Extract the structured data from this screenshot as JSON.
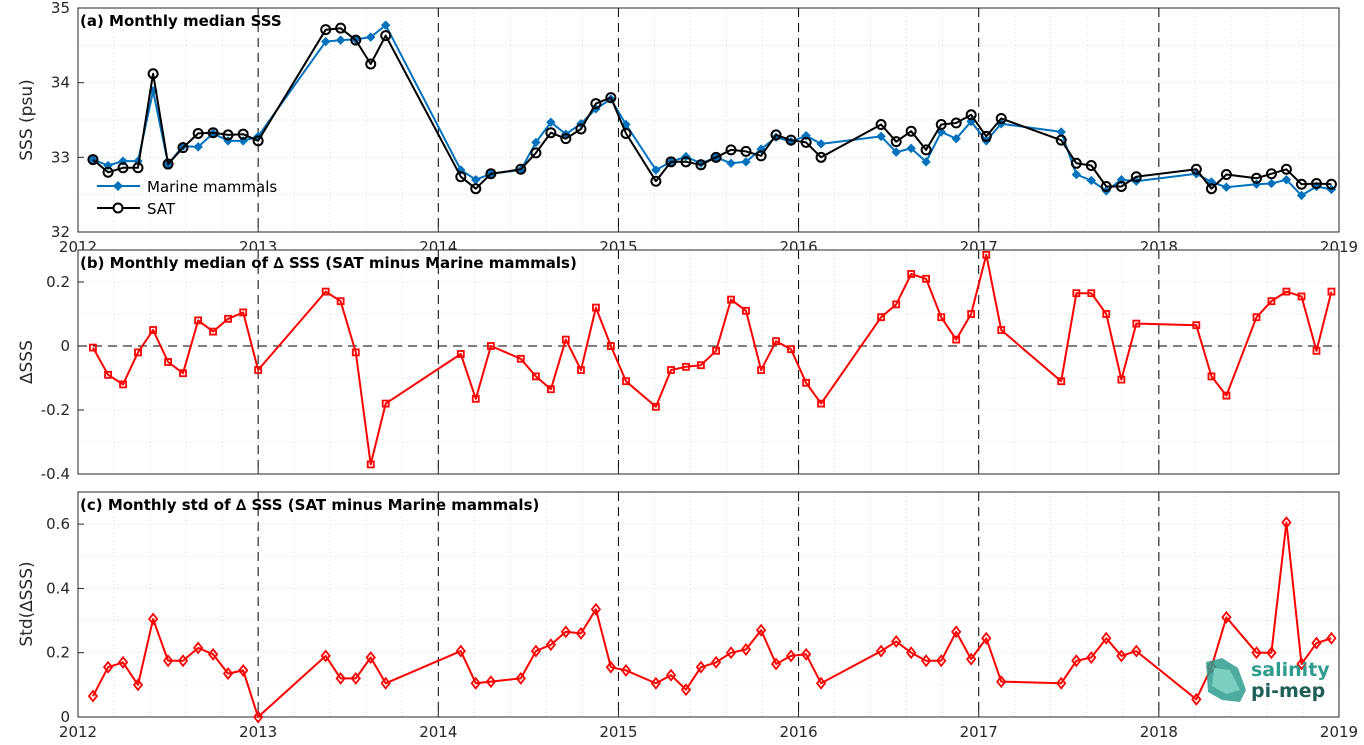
{
  "colors": {
    "mammals": "#0072BD",
    "sat": "#000000",
    "delta": "#FF0000",
    "grid": "#cfcfcf",
    "logo": "#2e9c8e"
  },
  "logo": {
    "line1": "salinity",
    "line2": "pi-mep"
  },
  "chart_data": [
    {
      "type": "line",
      "title": "(a) Monthly median SSS",
      "ylabel": "SSS (psu)",
      "xlim": [
        2012,
        2019
      ],
      "ylim": [
        32,
        35
      ],
      "yticks": [
        32,
        33,
        34,
        35
      ],
      "ytick_labels": [
        "32",
        "33",
        "34",
        "35"
      ],
      "xticks": [
        2012,
        2013,
        2014,
        2015,
        2016,
        2017,
        2018,
        2019
      ],
      "xtick_labels": [
        "2012",
        "2013",
        "2014",
        "2015",
        "2016",
        "2017",
        "2018",
        "2019"
      ],
      "grid": true,
      "legend": "left",
      "series": [
        {
          "name": "Marine mammals",
          "marker": "diamond",
          "x": [
            2012.083,
            2012.167,
            2012.25,
            2012.333,
            2012.417,
            2012.5,
            2012.583,
            2012.667,
            2012.75,
            2012.833,
            2012.917,
            2013.0,
            2013.375,
            2013.458,
            2013.542,
            2013.625,
            2013.708,
            2014.125,
            2014.208,
            2014.292,
            2014.458,
            2014.542,
            2014.625,
            2014.708,
            2014.792,
            2014.875,
            2014.958,
            2015.042,
            2015.208,
            2015.292,
            2015.375,
            2015.458,
            2015.542,
            2015.625,
            2015.708,
            2015.792,
            2015.875,
            2015.958,
            2016.042,
            2016.125,
            2016.458,
            2016.542,
            2016.625,
            2016.708,
            2016.792,
            2016.875,
            2016.958,
            2017.042,
            2017.125,
            2017.458,
            2017.542,
            2017.625,
            2017.708,
            2017.792,
            2017.875,
            2018.208,
            2018.292,
            2018.375,
            2018.542,
            2018.625,
            2018.708,
            2018.792,
            2018.875,
            2018.958
          ],
          "y": [
            32.97,
            32.89,
            32.95,
            32.95,
            33.89,
            32.91,
            33.15,
            33.14,
            33.32,
            33.22,
            33.22,
            33.28,
            34.55,
            34.57,
            34.58,
            34.61,
            34.77,
            32.83,
            32.7,
            32.78,
            32.83,
            33.2,
            33.47,
            33.31,
            33.45,
            33.65,
            33.78,
            33.44,
            32.83,
            32.94,
            33.01,
            32.92,
            33.0,
            32.92,
            32.94,
            33.11,
            33.27,
            33.21,
            33.29,
            33.18,
            33.28,
            33.07,
            33.12,
            32.94,
            33.34,
            33.25,
            33.48,
            33.22,
            33.45,
            33.34,
            32.77,
            32.69,
            32.55,
            32.7,
            32.68,
            32.78,
            32.67,
            32.6,
            32.64,
            32.65,
            32.7,
            32.49,
            32.61,
            32.57
          ]
        },
        {
          "name": "SAT",
          "marker": "circle",
          "x": [
            2012.083,
            2012.167,
            2012.25,
            2012.333,
            2012.417,
            2012.5,
            2012.583,
            2012.667,
            2012.75,
            2012.833,
            2012.917,
            2013.0,
            2013.375,
            2013.458,
            2013.542,
            2013.625,
            2013.708,
            2014.125,
            2014.208,
            2014.292,
            2014.458,
            2014.542,
            2014.625,
            2014.708,
            2014.792,
            2014.875,
            2014.958,
            2015.042,
            2015.208,
            2015.292,
            2015.375,
            2015.458,
            2015.542,
            2015.625,
            2015.708,
            2015.792,
            2015.875,
            2015.958,
            2016.042,
            2016.125,
            2016.458,
            2016.542,
            2016.625,
            2016.708,
            2016.792,
            2016.875,
            2016.958,
            2017.042,
            2017.125,
            2017.458,
            2017.542,
            2017.625,
            2017.708,
            2017.792,
            2017.875,
            2018.208,
            2018.292,
            2018.375,
            2018.542,
            2018.625,
            2018.708,
            2018.792,
            2018.875,
            2018.958
          ],
          "y": [
            32.97,
            32.8,
            32.86,
            32.86,
            34.12,
            32.91,
            33.13,
            33.32,
            33.33,
            33.3,
            33.31,
            33.22,
            34.71,
            34.73,
            34.57,
            34.25,
            34.63,
            32.74,
            32.58,
            32.78,
            32.84,
            33.06,
            33.33,
            33.25,
            33.38,
            33.72,
            33.8,
            33.32,
            32.68,
            32.94,
            32.94,
            32.9,
            33.0,
            33.1,
            33.08,
            33.02,
            33.3,
            33.23,
            33.2,
            33.0,
            33.44,
            33.21,
            33.35,
            33.1,
            33.44,
            33.46,
            33.57,
            33.28,
            33.52,
            33.23,
            32.92,
            32.89,
            32.61,
            32.61,
            32.74,
            32.84,
            32.58,
            32.77,
            32.72,
            32.78,
            32.84,
            32.64,
            32.65,
            32.64
          ]
        }
      ]
    },
    {
      "type": "line",
      "title": "(b) Monthly median of ∆ SSS (SAT minus Marine mammals)",
      "ylabel": "∆SSS",
      "xlim": [
        2012,
        2019
      ],
      "ylim": [
        -0.4,
        0.3
      ],
      "yticks": [
        -0.4,
        -0.2,
        0,
        0.2
      ],
      "ytick_labels": [
        "-0.4",
        "-0.2",
        "0",
        "0.2"
      ],
      "xticks": [
        2012,
        2013,
        2014,
        2015,
        2016,
        2017,
        2018,
        2019
      ],
      "xtick_labels": [
        "",
        "",
        "",
        "",
        "",
        "",
        "",
        ""
      ],
      "grid": true,
      "series": [
        {
          "marker": "square",
          "x": [
            2012.083,
            2012.167,
            2012.25,
            2012.333,
            2012.417,
            2012.5,
            2012.583,
            2012.667,
            2012.75,
            2012.833,
            2012.917,
            2013.0,
            2013.375,
            2013.458,
            2013.542,
            2013.625,
            2013.708,
            2014.125,
            2014.208,
            2014.292,
            2014.458,
            2014.542,
            2014.625,
            2014.708,
            2014.792,
            2014.875,
            2014.958,
            2015.042,
            2015.208,
            2015.292,
            2015.375,
            2015.458,
            2015.542,
            2015.625,
            2015.708,
            2015.792,
            2015.875,
            2015.958,
            2016.042,
            2016.125,
            2016.458,
            2016.542,
            2016.625,
            2016.708,
            2016.792,
            2016.875,
            2016.958,
            2017.042,
            2017.125,
            2017.458,
            2017.542,
            2017.625,
            2017.708,
            2017.792,
            2017.875,
            2018.208,
            2018.292,
            2018.375,
            2018.542,
            2018.625,
            2018.708,
            2018.792,
            2018.875,
            2018.958
          ],
          "y": [
            -0.005,
            -0.09,
            -0.12,
            -0.02,
            0.05,
            -0.05,
            -0.085,
            0.08,
            0.045,
            0.085,
            0.105,
            -0.075,
            0.17,
            0.14,
            -0.02,
            -0.37,
            -0.18,
            -0.025,
            -0.165,
            0.0,
            -0.04,
            -0.095,
            -0.135,
            0.02,
            -0.075,
            0.12,
            0.0,
            -0.11,
            -0.19,
            -0.075,
            -0.065,
            -0.06,
            -0.015,
            0.145,
            0.11,
            -0.075,
            0.015,
            -0.01,
            -0.115,
            -0.18,
            0.09,
            0.13,
            0.225,
            0.21,
            0.09,
            0.02,
            0.1,
            0.285,
            0.05,
            -0.11,
            0.165,
            0.165,
            0.1,
            -0.105,
            0.07,
            0.065,
            -0.095,
            -0.155,
            0.09,
            0.14,
            0.17,
            0.155,
            -0.015,
            0.17
          ]
        }
      ]
    },
    {
      "type": "line",
      "title": "(c) Monthly std of ∆ SSS (SAT minus Marine mammals)",
      "ylabel": "Std(∆SSS)",
      "xlim": [
        2012,
        2019
      ],
      "ylim": [
        0,
        0.7
      ],
      "yticks": [
        0,
        0.2,
        0.4,
        0.6
      ],
      "ytick_labels": [
        "0",
        "0.2",
        "0.4",
        "0.6"
      ],
      "xticks": [
        2012,
        2013,
        2014,
        2015,
        2016,
        2017,
        2018,
        2019
      ],
      "xtick_labels": [
        "2012",
        "2013",
        "2014",
        "2015",
        "2016",
        "2017",
        "2018",
        "2019"
      ],
      "grid": true,
      "series": [
        {
          "marker": "diamond",
          "x": [
            2012.083,
            2012.167,
            2012.25,
            2012.333,
            2012.417,
            2012.5,
            2012.583,
            2012.667,
            2012.75,
            2012.833,
            2012.917,
            2013.0,
            2013.375,
            2013.458,
            2013.542,
            2013.625,
            2013.708,
            2014.125,
            2014.208,
            2014.292,
            2014.458,
            2014.542,
            2014.625,
            2014.708,
            2014.792,
            2014.875,
            2014.958,
            2015.042,
            2015.208,
            2015.292,
            2015.375,
            2015.458,
            2015.542,
            2015.625,
            2015.708,
            2015.792,
            2015.875,
            2015.958,
            2016.042,
            2016.125,
            2016.458,
            2016.542,
            2016.625,
            2016.708,
            2016.792,
            2016.875,
            2016.958,
            2017.042,
            2017.125,
            2017.458,
            2017.542,
            2017.625,
            2017.708,
            2017.792,
            2017.875,
            2018.208,
            2018.292,
            2018.375,
            2018.542,
            2018.625,
            2018.708,
            2018.792,
            2018.875,
            2018.958
          ],
          "y": [
            0.065,
            0.155,
            0.17,
            0.1,
            0.305,
            0.175,
            0.175,
            0.215,
            0.195,
            0.135,
            0.145,
            0.0,
            0.19,
            0.12,
            0.12,
            0.185,
            0.105,
            0.205,
            0.105,
            0.11,
            0.12,
            0.205,
            0.225,
            0.265,
            0.26,
            0.335,
            0.155,
            0.145,
            0.105,
            0.13,
            0.085,
            0.155,
            0.17,
            0.2,
            0.21,
            0.27,
            0.165,
            0.19,
            0.195,
            0.105,
            0.205,
            0.235,
            0.2,
            0.175,
            0.175,
            0.265,
            0.18,
            0.245,
            0.11,
            0.105,
            0.175,
            0.185,
            0.245,
            0.19,
            0.205,
            0.055,
            0.155,
            0.31,
            0.2,
            0.2,
            0.605,
            0.165,
            0.23,
            0.245
          ]
        }
      ]
    }
  ]
}
